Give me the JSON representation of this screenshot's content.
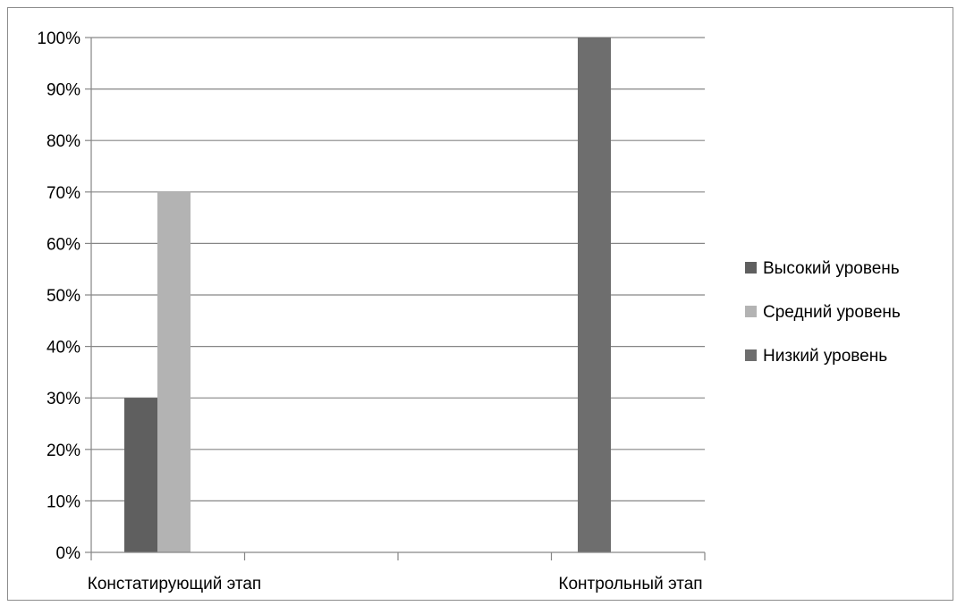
{
  "chart_data": {
    "type": "bar",
    "categories": [
      "Констатирующий этап",
      "Контрольный этап"
    ],
    "series": [
      {
        "name": "Высокий уровень",
        "values": [
          30,
          0
        ],
        "color": "#5f5f5f"
      },
      {
        "name": "Средний уровень",
        "values": [
          70,
          0
        ],
        "color": "#b3b3b3"
      },
      {
        "name": "Низкий уровень",
        "values": [
          0,
          100
        ],
        "color": "#6e6e6e"
      }
    ],
    "yticks": [
      "0%",
      "10%",
      "20%",
      "30%",
      "40%",
      "50%",
      "60%",
      "70%",
      "80%",
      "90%",
      "100%"
    ],
    "ylim": [
      0,
      100
    ],
    "yunit": "%",
    "grid": true,
    "legend_position": "right"
  }
}
